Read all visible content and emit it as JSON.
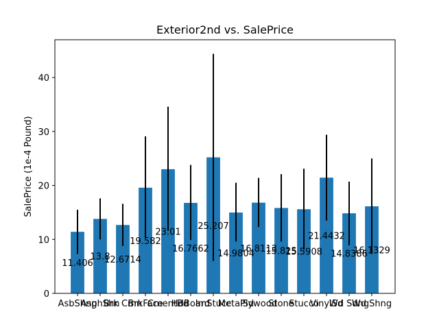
{
  "chart_data": {
    "type": "bar",
    "title": "Exterior2nd vs. SalePrice",
    "xlabel": "",
    "ylabel": "SalePrice (1e-4 Pound)",
    "ylim": [
      0,
      47
    ],
    "yticks": [
      0,
      10,
      20,
      30,
      40
    ],
    "categories": [
      "AsbShng",
      "AsphShn",
      "Brk Cmn",
      "BrkFace",
      "CmentBd",
      "HdBoard",
      "ImStucc",
      "MetalSd",
      "Plywood",
      "Stone",
      "Stucco",
      "VinylSd",
      "Wd Sdng",
      "Wd Shng"
    ],
    "values": [
      11.406,
      13.8,
      12.6714,
      19.582,
      23.01,
      16.7662,
      25.207,
      14.9804,
      16.8113,
      15.825,
      15.5908,
      21.4432,
      14.8386,
      16.1329
    ],
    "value_labels": [
      "11.406",
      "13.8",
      "12.6714",
      "19.582",
      "23.01",
      "16.7662",
      "25.207",
      "14.9804",
      "16.8113",
      "15.825",
      "15.5908",
      "21.4432",
      "14.8386",
      "16.1329"
    ],
    "error_low": [
      7.3,
      10.0,
      8.8,
      10.3,
      11.6,
      9.9,
      6.0,
      9.6,
      12.3,
      9.6,
      8.1,
      13.5,
      8.9,
      7.3
    ],
    "error_high": [
      15.5,
      17.6,
      16.6,
      29.1,
      34.6,
      23.8,
      44.4,
      20.5,
      21.4,
      22.1,
      23.1,
      29.4,
      20.7,
      25.0
    ],
    "bar_color": "#1f77b4",
    "error_color": "#000000",
    "grid": false,
    "legend": "none"
  }
}
